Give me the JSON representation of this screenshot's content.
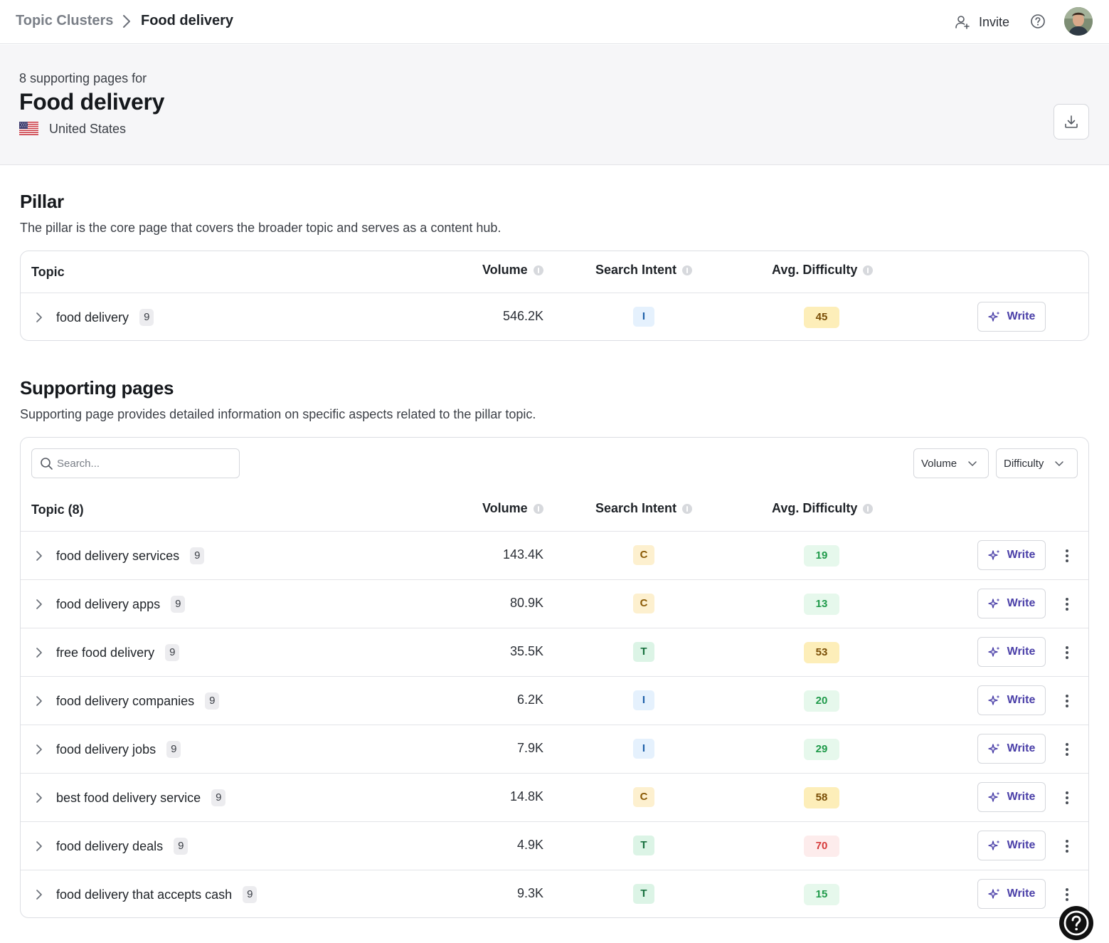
{
  "breadcrumb": {
    "parent": "Topic Clusters",
    "current": "Food delivery"
  },
  "topbar": {
    "invite_label": "Invite"
  },
  "header": {
    "subtitle": "8 supporting pages for",
    "title": "Food delivery",
    "country": "United States"
  },
  "pillar": {
    "title": "Pillar",
    "description": "The pillar is the core page that covers the broader topic and serves as a content hub.",
    "columns": {
      "topic": "Topic",
      "volume": "Volume",
      "intent": "Search Intent",
      "difficulty": "Avg. Difficulty"
    },
    "row": {
      "topic": "food delivery",
      "count": "9",
      "volume": "546.2K",
      "intent": "I",
      "difficulty": "45",
      "write_label": "Write"
    }
  },
  "supporting": {
    "title": "Supporting pages",
    "description": "Supporting page provides detailed information on specific aspects related to the pillar topic.",
    "search_placeholder": "Search...",
    "filters": {
      "volume": "Volume",
      "difficulty": "Difficulty"
    },
    "columns": {
      "topic": "Topic (8)",
      "volume": "Volume",
      "intent": "Search Intent",
      "difficulty": "Avg. Difficulty"
    },
    "rows": [
      {
        "topic": "food delivery services",
        "count": "9",
        "volume": "143.4K",
        "intent": "C",
        "difficulty": "19",
        "level": "easy",
        "write_label": "Write"
      },
      {
        "topic": "food delivery apps",
        "count": "9",
        "volume": "80.9K",
        "intent": "C",
        "difficulty": "13",
        "level": "easy",
        "write_label": "Write"
      },
      {
        "topic": "free food delivery",
        "count": "9",
        "volume": "35.5K",
        "intent": "T",
        "difficulty": "53",
        "level": "med",
        "write_label": "Write"
      },
      {
        "topic": "food delivery companies",
        "count": "9",
        "volume": "6.2K",
        "intent": "I",
        "difficulty": "20",
        "level": "easy",
        "write_label": "Write"
      },
      {
        "topic": "food delivery jobs",
        "count": "9",
        "volume": "7.9K",
        "intent": "I",
        "difficulty": "29",
        "level": "easy",
        "write_label": "Write"
      },
      {
        "topic": "best food delivery service",
        "count": "9",
        "volume": "14.8K",
        "intent": "C",
        "difficulty": "58",
        "level": "med",
        "write_label": "Write"
      },
      {
        "topic": "food delivery deals",
        "count": "9",
        "volume": "4.9K",
        "intent": "T",
        "difficulty": "70",
        "level": "hard",
        "write_label": "Write"
      },
      {
        "topic": "food delivery that accepts cash",
        "count": "9",
        "volume": "9.3K",
        "intent": "T",
        "difficulty": "15",
        "level": "easy",
        "write_label": "Write"
      }
    ]
  },
  "icons": {
    "breadcrumb_separator": "chevron-right-icon",
    "invite": "user-plus-icon",
    "help": "help-circle-icon",
    "download": "download-icon",
    "search": "search-icon",
    "expand": "chevron-right-icon",
    "write": "sparkle-icon",
    "more": "more-vertical-icon",
    "dropdown": "chevron-down-icon"
  },
  "colors": {
    "accent": "#4a3fa8",
    "intent_informational": "#1d5fa8",
    "intent_commercial": "#8a5a06",
    "intent_transactional": "#17703e",
    "difficulty_easy": "#1f9a4a",
    "difficulty_medium": "#7a4e06",
    "difficulty_hard": "#d63a3a"
  }
}
